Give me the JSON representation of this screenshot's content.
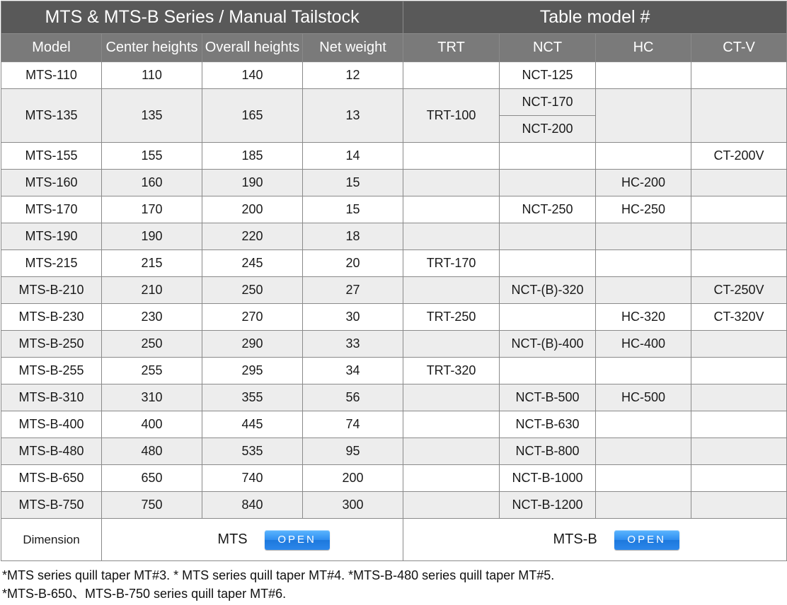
{
  "header": {
    "left_title": "MTS & MTS-B Series / Manual Tailstock",
    "right_title": "Table model #"
  },
  "columns": [
    "Model",
    "Center heights",
    "Overall heights",
    "Net weight",
    "TRT",
    "NCT",
    "HC",
    "CT-V"
  ],
  "rows": [
    {
      "model": "MTS-110",
      "center": "110",
      "overall": "140",
      "weight": "12",
      "trt": "",
      "nct": "NCT-125",
      "hc": "",
      "ctv": ""
    },
    {
      "model": "MTS-135",
      "center": "135",
      "overall": "165",
      "weight": "13",
      "trt": "TRT-100",
      "nct": "NCT-170",
      "nct_2": "NCT-200",
      "hc": "",
      "ctv": ""
    },
    {
      "model": "MTS-155",
      "center": "155",
      "overall": "185",
      "weight": "14",
      "trt": "",
      "nct": "",
      "hc": "",
      "ctv": "CT-200V"
    },
    {
      "model": "MTS-160",
      "center": "160",
      "overall": "190",
      "weight": "15",
      "trt": "",
      "nct": "",
      "hc": "HC-200",
      "ctv": ""
    },
    {
      "model": "MTS-170",
      "center": "170",
      "overall": "200",
      "weight": "15",
      "trt": "",
      "nct": "NCT-250",
      "hc": "HC-250",
      "ctv": ""
    },
    {
      "model": "MTS-190",
      "center": "190",
      "overall": "220",
      "weight": "18",
      "trt": "",
      "nct": "",
      "hc": "",
      "ctv": ""
    },
    {
      "model": "MTS-215",
      "center": "215",
      "overall": "245",
      "weight": "20",
      "trt": "TRT-170",
      "nct": "",
      "hc": "",
      "ctv": ""
    },
    {
      "model": "MTS-B-210",
      "center": "210",
      "overall": "250",
      "weight": "27",
      "trt": "",
      "nct": "NCT-(B)-320",
      "hc": "",
      "ctv": "CT-250V"
    },
    {
      "model": "MTS-B-230",
      "center": "230",
      "overall": "270",
      "weight": "30",
      "trt": "TRT-250",
      "nct": "",
      "hc": "HC-320",
      "ctv": "CT-320V"
    },
    {
      "model": "MTS-B-250",
      "center": "250",
      "overall": "290",
      "weight": "33",
      "trt": "",
      "nct": "NCT-(B)-400",
      "hc": "HC-400",
      "ctv": ""
    },
    {
      "model": "MTS-B-255",
      "center": "255",
      "overall": "295",
      "weight": "34",
      "trt": "TRT-320",
      "nct": "",
      "hc": "",
      "ctv": ""
    },
    {
      "model": "MTS-B-310",
      "center": "310",
      "overall": "355",
      "weight": "56",
      "trt": "",
      "nct": "NCT-B-500",
      "hc": "HC-500",
      "ctv": ""
    },
    {
      "model": "MTS-B-400",
      "center": "400",
      "overall": "445",
      "weight": "74",
      "trt": "",
      "nct": "NCT-B-630",
      "hc": "",
      "ctv": ""
    },
    {
      "model": "MTS-B-480",
      "center": "480",
      "overall": "535",
      "weight": "95",
      "trt": "",
      "nct": "NCT-B-800",
      "hc": "",
      "ctv": ""
    },
    {
      "model": "MTS-B-650",
      "center": "650",
      "overall": "740",
      "weight": "200",
      "trt": "",
      "nct": "NCT-B-1000",
      "hc": "",
      "ctv": ""
    },
    {
      "model": "MTS-B-750",
      "center": "750",
      "overall": "840",
      "weight": "300",
      "trt": "",
      "nct": "NCT-B-1200",
      "hc": "",
      "ctv": ""
    }
  ],
  "dimension": {
    "label": "Dimension",
    "mts_label": "MTS",
    "mtsb_label": "MTS-B",
    "open_label": "OPEN"
  },
  "notes": [
    "*MTS series quill taper MT#3. * MTS series quill taper MT#4. *MTS-B-480 series quill taper MT#5.",
    "*MTS-B-650、MTS-B-750 series quill taper MT#6."
  ],
  "colors": {
    "title_bg": "#595959",
    "header_bg": "#7a7a7a",
    "row_alt_bg": "#ededed",
    "border": "#8a8a8a",
    "button_blue": "#2f8ef0"
  }
}
